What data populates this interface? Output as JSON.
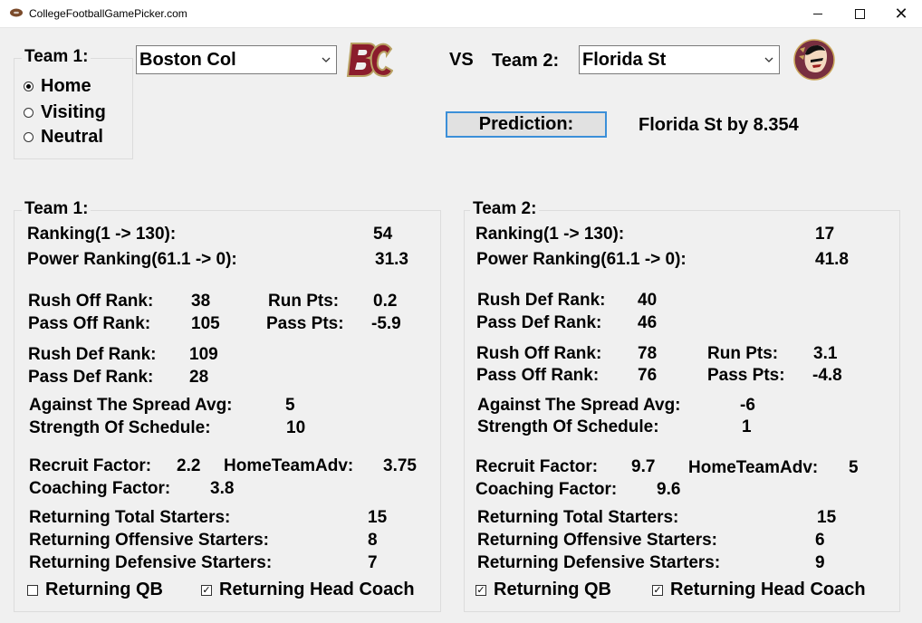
{
  "window": {
    "title": "CollegeFootballGamePicker.com"
  },
  "selector": {
    "team1_label": "Team 1:",
    "location_options": [
      "Home",
      "Visiting",
      "Neutral"
    ],
    "location_selected": "Home",
    "team1_value": "Boston Col",
    "vs_label": "VS",
    "team2_label": "Team 2:",
    "team2_value": "Florida St",
    "predict_label": "Prediction:",
    "prediction_result": "Florida St by 8.354"
  },
  "team1": {
    "group_label": "Team 1:",
    "ranking_label": "Ranking(1 -> 130):",
    "ranking": "54",
    "power_label": "Power Ranking(61.1 -> 0):",
    "power": "31.3",
    "rush_off_label": "Rush Off Rank:",
    "rush_off": "38",
    "run_pts_label": "Run Pts:",
    "run_pts": "0.2",
    "pass_off_label": "Pass Off Rank:",
    "pass_off": "105",
    "pass_pts_label": "Pass Pts:",
    "pass_pts": "-5.9",
    "rush_def_label": "Rush Def Rank:",
    "rush_def": "109",
    "pass_def_label": "Pass Def Rank:",
    "pass_def": "28",
    "ats_label": "Against The Spread Avg:",
    "ats": "5",
    "sos_label": "Strength Of Schedule:",
    "sos": "10",
    "recruit_label": "Recruit Factor:",
    "recruit": "2.2",
    "home_adv_label": "HomeTeamAdv:",
    "home_adv": "3.75",
    "coaching_label": "Coaching Factor:",
    "coaching": "3.8",
    "ret_total_label": "Returning Total Starters:",
    "ret_total": "15",
    "ret_off_label": "Returning Offensive Starters:",
    "ret_off": "8",
    "ret_def_label": "Returning Defensive Starters:",
    "ret_def": "7",
    "ret_qb_label": "Returning QB",
    "ret_qb_checked": false,
    "ret_coach_label": "Returning Head Coach",
    "ret_coach_checked": true
  },
  "team2": {
    "group_label": "Team 2:",
    "ranking_label": "Ranking(1 -> 130):",
    "ranking": "17",
    "power_label": "Power Ranking(61.1 -> 0):",
    "power": "41.8",
    "rush_def_label": "Rush Def Rank:",
    "rush_def": "40",
    "pass_def_label": "Pass Def Rank:",
    "pass_def": "46",
    "rush_off_label": "Rush Off Rank:",
    "rush_off": "78",
    "run_pts_label": "Run Pts:",
    "run_pts": "3.1",
    "pass_off_label": "Pass Off Rank:",
    "pass_off": "76",
    "pass_pts_label": "Pass Pts:",
    "pass_pts": "-4.8",
    "ats_label": "Against The Spread Avg:",
    "ats": "-6",
    "sos_label": "Strength Of Schedule:",
    "sos": "1",
    "recruit_label": "Recruit Factor:",
    "recruit": "9.7",
    "home_adv_label": "HomeTeamAdv:",
    "home_adv": "5",
    "coaching_label": "Coaching Factor:",
    "coaching": "9.6",
    "ret_total_label": "Returning Total Starters:",
    "ret_total": "15",
    "ret_off_label": "Returning Offensive Starters:",
    "ret_off": "6",
    "ret_def_label": "Returning Defensive Starters:",
    "ret_def": "9",
    "ret_qb_label": "Returning QB",
    "ret_qb_checked": true,
    "ret_coach_label": "Returning Head Coach",
    "ret_coach_checked": true
  },
  "colors": {
    "accent": "#3b8fd8",
    "bc_maroon": "#8b1c2c",
    "bc_gold": "#b8a063",
    "fsu_garnet": "#782f40"
  }
}
